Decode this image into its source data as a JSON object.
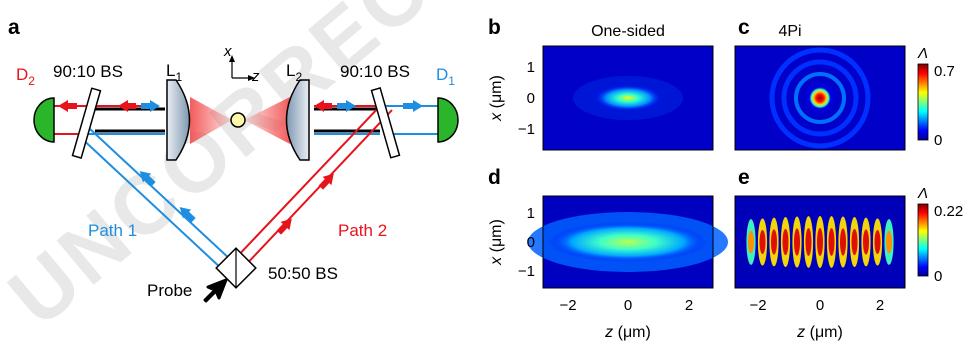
{
  "watermark": "UNCORRECTED PROOF",
  "panels": {
    "a": "a",
    "b": "b",
    "c": "c",
    "d": "d",
    "e": "e"
  },
  "setup": {
    "detector_left": "D",
    "detector_left_sub": "2",
    "detector_right": "D",
    "detector_right_sub": "1",
    "bs_left": "90:10 BS",
    "bs_right": "90:10 BS",
    "lens_left": "L",
    "lens_left_sub": "1",
    "lens_right": "L",
    "lens_right_sub": "2",
    "axis_x": "x",
    "axis_z": "z",
    "path1": "Path 1",
    "path2": "Path 2",
    "bs_center": "50:50 BS",
    "probe": "Probe",
    "colors": {
      "red": "#e8141c",
      "blue": "#1f8ee0",
      "green": "#2bb52b"
    }
  },
  "maps": {
    "title_b": "One-sided",
    "title_c": "4Pi",
    "ylabel_var": "x",
    "ylabel_unit": " (μm)",
    "xlabel_var": "z",
    "xlabel_unit": " (μm)",
    "yticks": [
      "1",
      "0",
      "−1"
    ],
    "xticks": [
      "−2",
      "0",
      "2"
    ],
    "colorbar_symbol": "Λ",
    "colorbar_top_max": "0.7",
    "colorbar_top_min": "0",
    "colorbar_bottom_max": "0.22",
    "colorbar_bottom_min": "0",
    "colormap": "jet"
  }
}
